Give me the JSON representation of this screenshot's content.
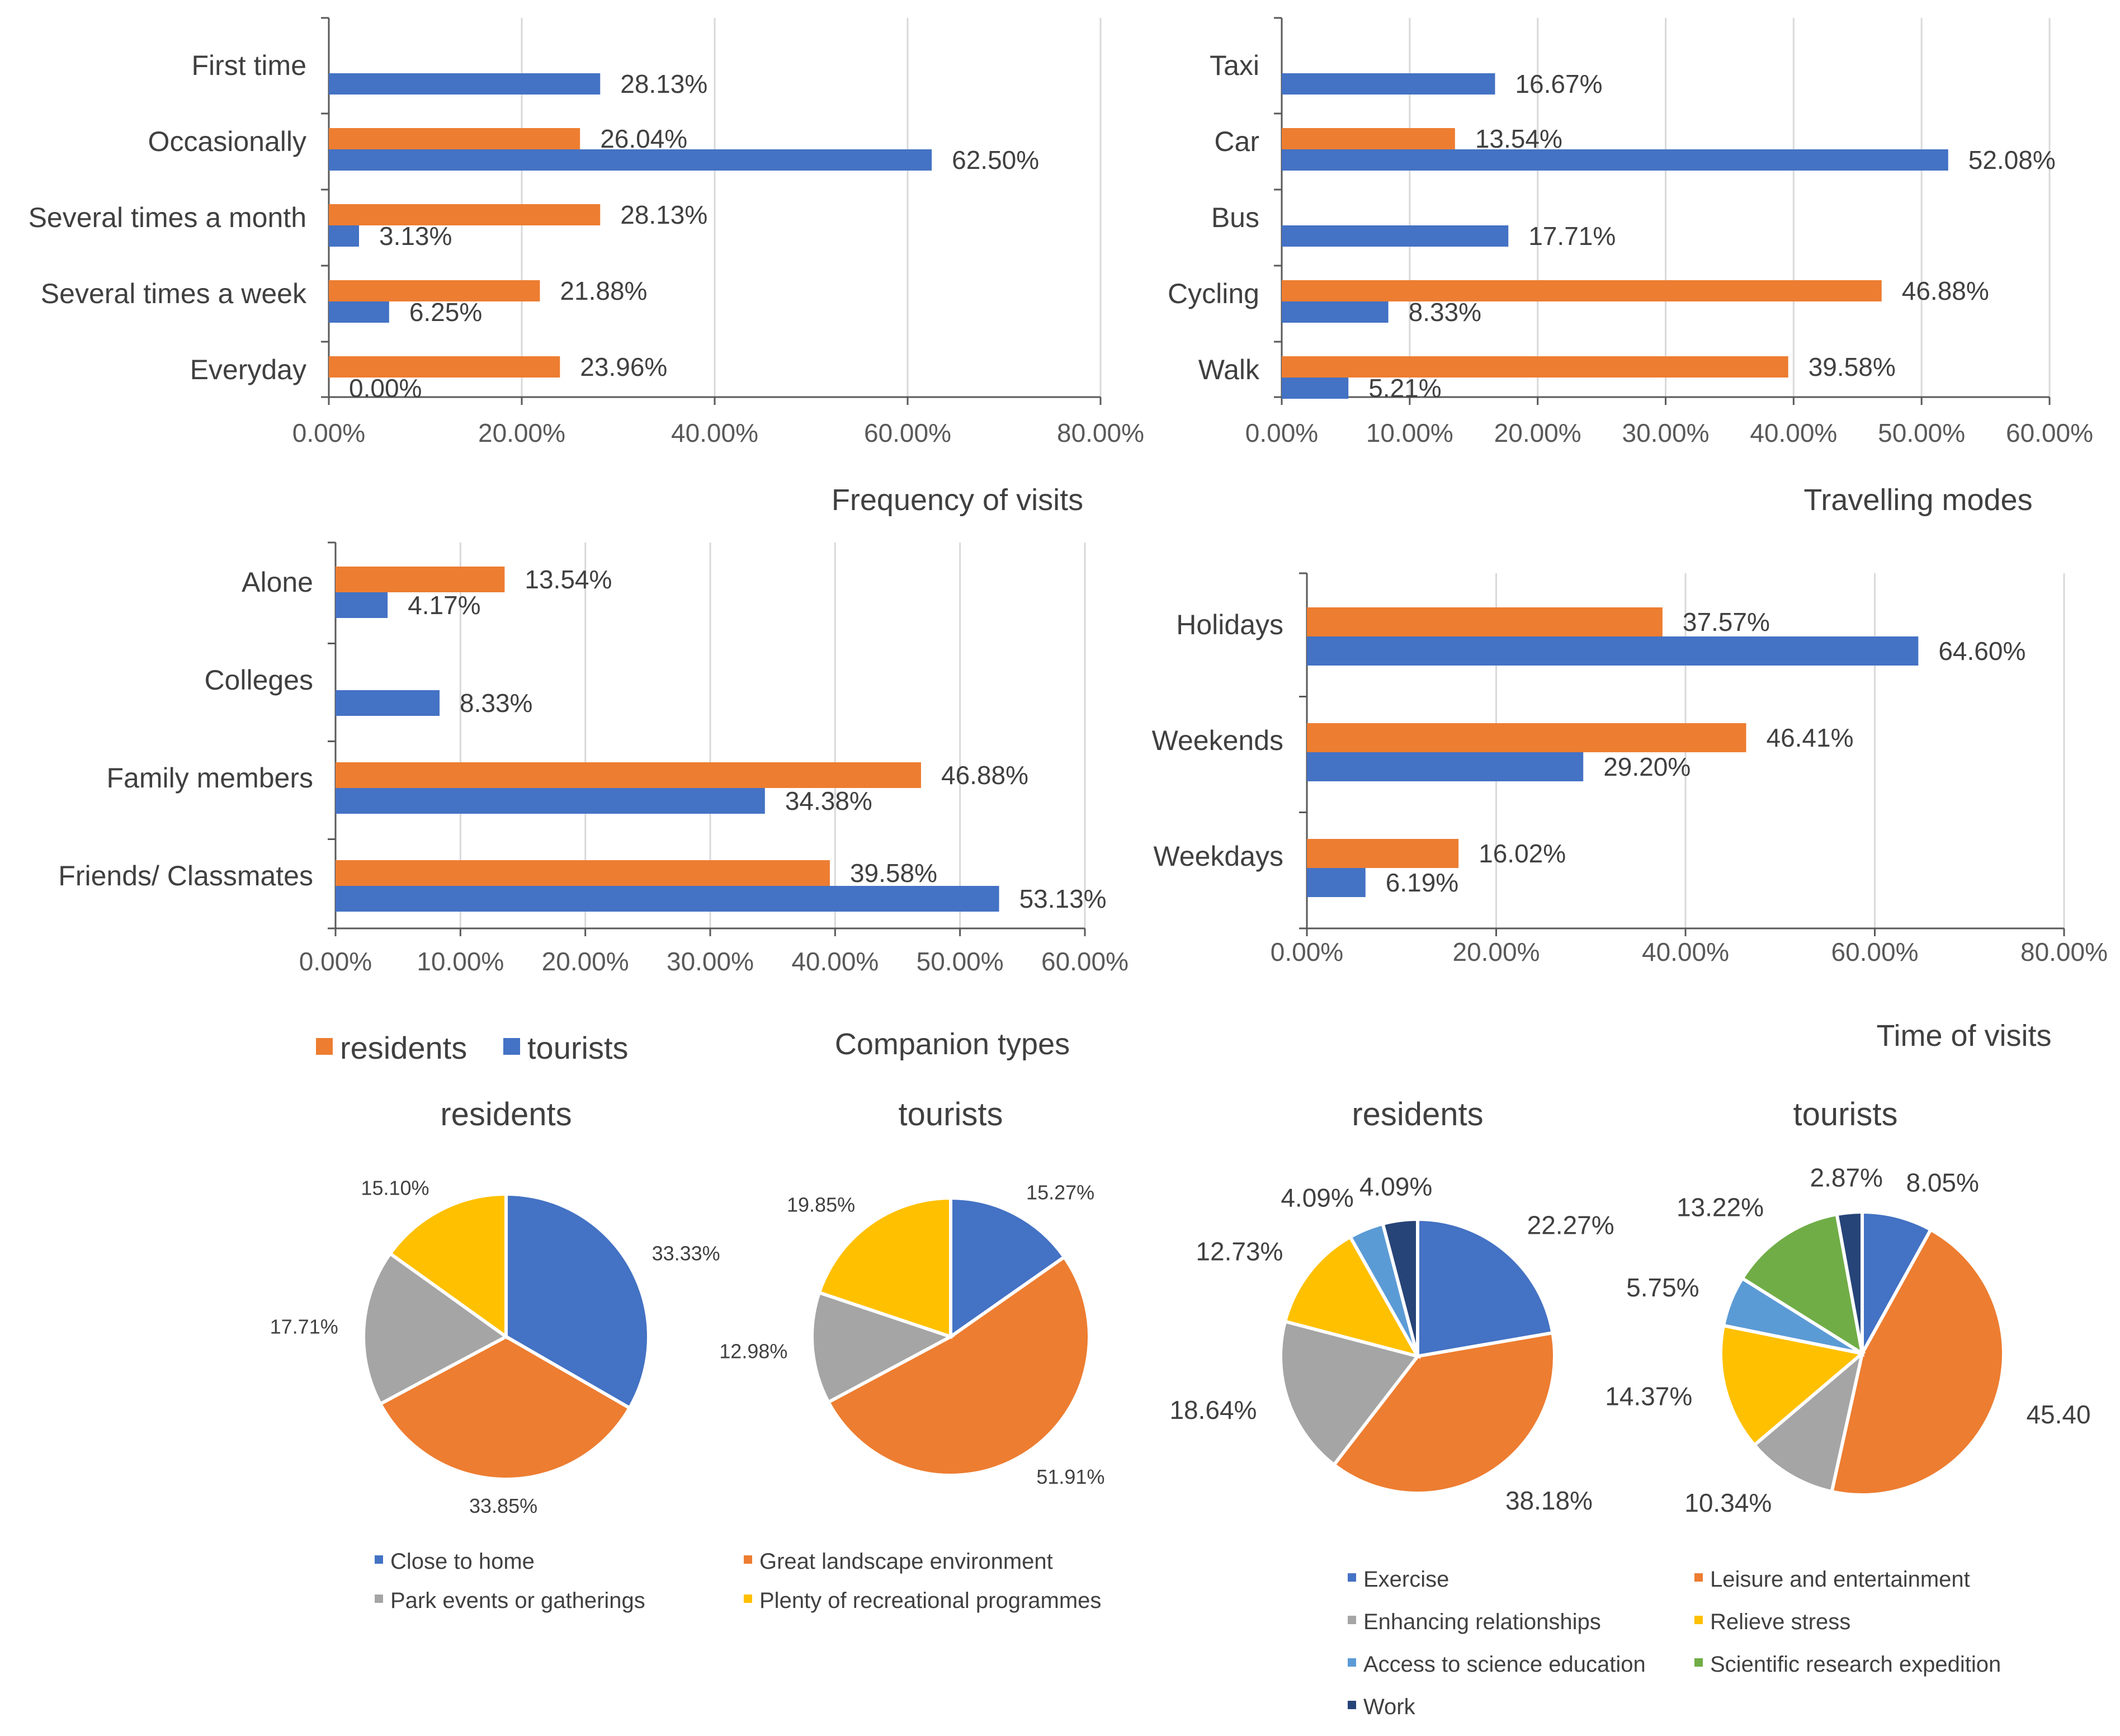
{
  "colors": {
    "residents": "#ED7D31",
    "tourists": "#4472C4",
    "pie": [
      "#4472C4",
      "#ED7D31",
      "#A5A5A5",
      "#FFC000",
      "#5B9BD5",
      "#70AD47",
      "#264478"
    ]
  },
  "series_legend": {
    "residents": "residents",
    "tourists": "tourists"
  },
  "chart_data": [
    {
      "id": "frequency",
      "type": "bar",
      "orientation": "horizontal",
      "title": "Frequency of visits",
      "categories": [
        "First time",
        "Occasionally",
        "Several times a month",
        "Several times a week",
        "Everyday"
      ],
      "series": [
        {
          "name": "residents",
          "values": [
            null,
            26.04,
            28.13,
            21.88,
            23.96
          ],
          "labels": [
            "",
            "26.04%",
            "28.13%",
            "21.88%",
            "23.96%"
          ]
        },
        {
          "name": "tourists",
          "values": [
            28.13,
            62.5,
            3.13,
            6.25,
            0.0
          ],
          "labels": [
            "28.13%",
            "62.50%",
            "3.13%",
            "6.25%",
            "0.00%"
          ]
        }
      ],
      "xlim": [
        0,
        80
      ],
      "ticks": [
        "0.00%",
        "20.00%",
        "40.00%",
        "60.00%",
        "80.00%"
      ],
      "grid": true
    },
    {
      "id": "travel",
      "type": "bar",
      "orientation": "horizontal",
      "title": "Travelling modes",
      "categories": [
        "Taxi",
        "Car",
        "Bus",
        "Cycling",
        "Walk"
      ],
      "series": [
        {
          "name": "residents",
          "values": [
            null,
            13.54,
            null,
            46.88,
            39.58
          ],
          "labels": [
            "",
            "13.54%",
            "",
            "46.88%",
            "39.58%"
          ]
        },
        {
          "name": "tourists",
          "values": [
            16.67,
            52.08,
            17.71,
            8.33,
            5.21
          ],
          "labels": [
            "16.67%",
            "52.08%",
            "17.71%",
            "8.33%",
            "5.21%"
          ]
        }
      ],
      "xlim": [
        0,
        60
      ],
      "ticks": [
        "0.00%",
        "10.00%",
        "20.00%",
        "30.00%",
        "40.00%",
        "50.00%",
        "60.00%"
      ],
      "grid": true
    },
    {
      "id": "companion",
      "type": "bar",
      "orientation": "horizontal",
      "title": "Companion types",
      "categories": [
        "Alone",
        "Colleges",
        "Family members",
        "Friends/ Classmates"
      ],
      "series": [
        {
          "name": "residents",
          "values": [
            13.54,
            null,
            46.88,
            39.58
          ],
          "labels": [
            "13.54%",
            "",
            "46.88%",
            "39.58%"
          ]
        },
        {
          "name": "tourists",
          "values": [
            4.17,
            8.33,
            34.38,
            53.13
          ],
          "labels": [
            "4.17%",
            "8.33%",
            "34.38%",
            "53.13%"
          ]
        }
      ],
      "xlim": [
        0,
        60
      ],
      "ticks": [
        "0.00%",
        "10.00%",
        "20.00%",
        "30.00%",
        "40.00%",
        "50.00%",
        "60.00%"
      ],
      "grid": true,
      "legend": "bottom-left"
    },
    {
      "id": "time",
      "type": "bar",
      "orientation": "horizontal",
      "title": "Time of visits",
      "categories": [
        "Holidays",
        "Weekends",
        "Weekdays"
      ],
      "series": [
        {
          "name": "residents",
          "values": [
            37.57,
            46.41,
            16.02
          ],
          "labels": [
            "37.57%",
            "46.41%",
            "16.02%"
          ]
        },
        {
          "name": "tourists",
          "values": [
            64.6,
            29.2,
            6.19
          ],
          "labels": [
            "64.60%",
            "29.20%",
            "6.19%"
          ]
        }
      ],
      "xlim": [
        0,
        80
      ],
      "ticks": [
        "0.00%",
        "20.00%",
        "40.00%",
        "60.00%",
        "80.00%"
      ],
      "grid": true
    },
    {
      "id": "reason_residents",
      "type": "pie",
      "title": "residents",
      "slices": [
        {
          "name": "Close to home",
          "value": 33.33,
          "label": "33.33%"
        },
        {
          "name": "Great landscape environment",
          "value": 33.85,
          "label": "33.85%"
        },
        {
          "name": "Park events or gatherings",
          "value": 17.71,
          "label": "17.71%"
        },
        {
          "name": "Plenty of recreational programmes",
          "value": 15.1,
          "label": "15.10%"
        }
      ]
    },
    {
      "id": "reason_tourists",
      "type": "pie",
      "title": "tourists",
      "slices": [
        {
          "name": "Close to home",
          "value": 15.27,
          "label": "15.27%"
        },
        {
          "name": "Great landscape environment",
          "value": 51.91,
          "label": "51.91%"
        },
        {
          "name": "Park events or gatherings",
          "value": 12.98,
          "label": "12.98%"
        },
        {
          "name": "Plenty of recreational programmes",
          "value": 19.85,
          "label": "19.85%"
        }
      ],
      "legend": [
        "Close to home",
        "Great landscape environment",
        "Park events or gatherings",
        "Plenty of recreational programmes"
      ]
    },
    {
      "id": "purpose_residents",
      "type": "pie",
      "title": "residents",
      "slices": [
        {
          "name": "Exercise",
          "value": 22.27,
          "label": "22.27%"
        },
        {
          "name": "Leisure and entertainment",
          "value": 38.18,
          "label": "38.18%"
        },
        {
          "name": "Enhancing relationships",
          "value": 18.64,
          "label": "18.64%"
        },
        {
          "name": "Relieve stress",
          "value": 12.73,
          "label": "12.73%"
        },
        {
          "name": "Access to science education",
          "value": 4.09,
          "label": "4.09%"
        },
        {
          "name": "Scientific research expedition",
          "value": 0,
          "label": ""
        },
        {
          "name": "Work",
          "value": 4.09,
          "label": "4.09%"
        }
      ]
    },
    {
      "id": "purpose_tourists",
      "type": "pie",
      "title": "tourists",
      "slices": [
        {
          "name": "Exercise",
          "value": 8.05,
          "label": "8.05%"
        },
        {
          "name": "Leisure and entertainment",
          "value": 45.4,
          "label": "45.40"
        },
        {
          "name": "Enhancing relationships",
          "value": 10.34,
          "label": "10.34%"
        },
        {
          "name": "Relieve stress",
          "value": 14.37,
          "label": "14.37%"
        },
        {
          "name": "Access to science education",
          "value": 5.75,
          "label": "5.75%"
        },
        {
          "name": "Scientific research expedition",
          "value": 13.22,
          "label": "13.22%"
        },
        {
          "name": "Work",
          "value": 2.87,
          "label": "2.87%"
        }
      ],
      "legend": [
        "Exercise",
        "Leisure and entertainment",
        "Enhancing relationships",
        "Relieve stress",
        "Access to science education",
        "Scientific research expedition",
        "Work"
      ]
    }
  ]
}
